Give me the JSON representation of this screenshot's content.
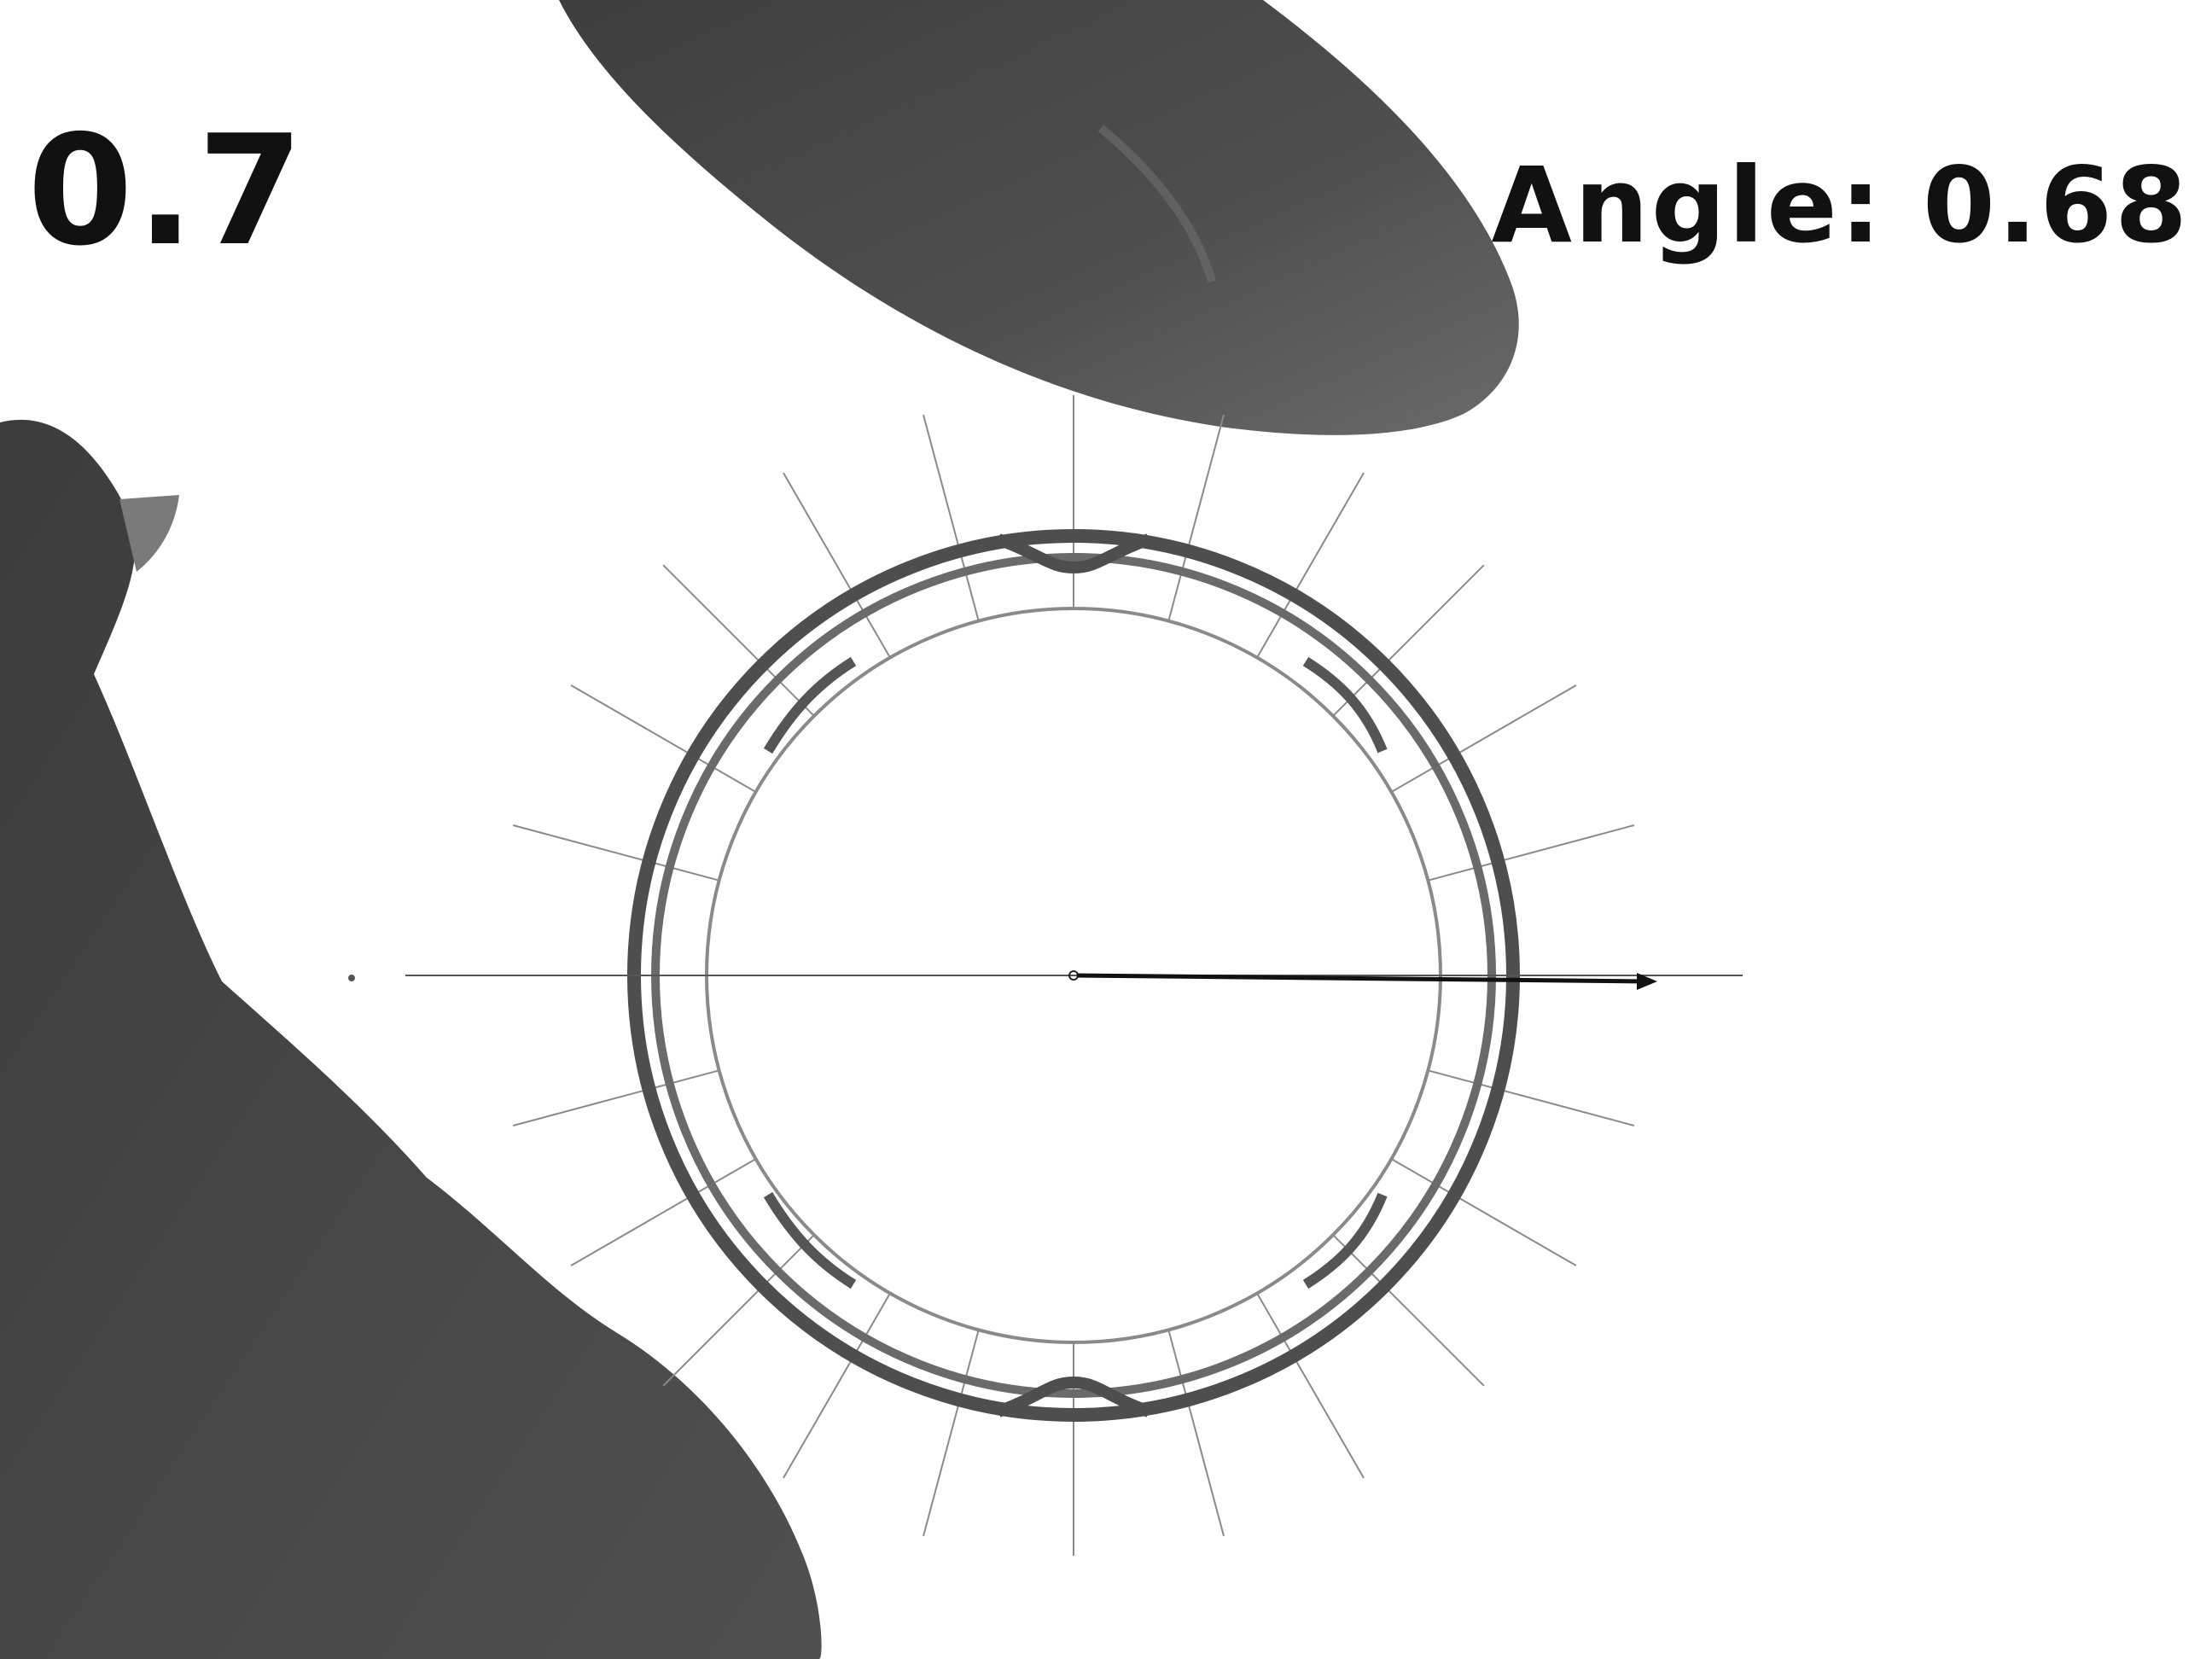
{
  "overlay": {
    "value": "0.7",
    "angle_prefix": "Angle:",
    "angle_value": "0.68"
  },
  "colors": {
    "background": "#ffffff",
    "hand_silhouette": "#4a4a4a",
    "ring_edge": "#5a5a5a",
    "guide_lines": "#8a8a8a",
    "arrow": "#111111",
    "text": "#111111"
  },
  "measurement": {
    "radial_guide_count": 24,
    "angle_degrees": 0.68
  }
}
